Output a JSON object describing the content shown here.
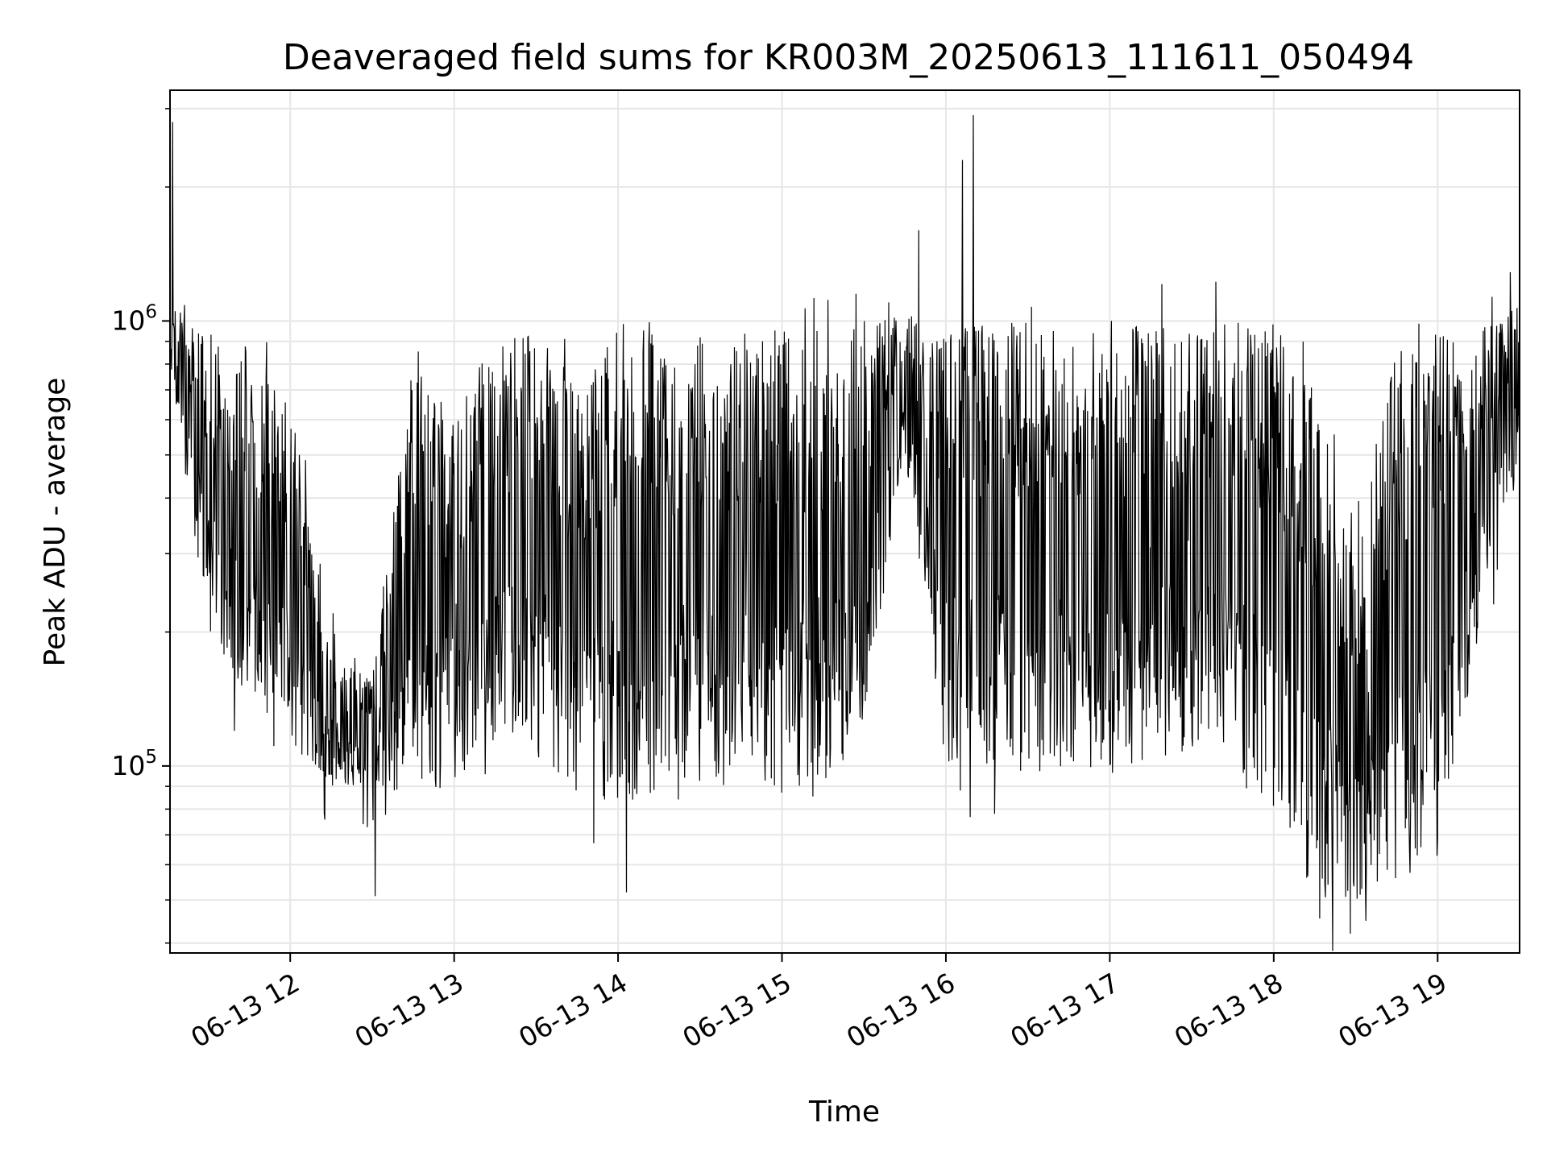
{
  "chart_data": {
    "type": "line",
    "title": "Deaveraged field sums for KR003M_20250613_111611_050494",
    "xlabel": "Time",
    "ylabel": "Peak ADU - average",
    "yscale": "log",
    "ylim": [
      38000,
      3300000
    ],
    "xlim": [
      "2025-06-13 11:16",
      "2025-06-13 19:30"
    ],
    "grid": true,
    "line_color": "#000000",
    "x_tick_labels": [
      "06-13 12",
      "06-13 13",
      "06-13 14",
      "06-13 15",
      "06-13 16",
      "06-13 17",
      "06-13 18",
      "06-13 19"
    ],
    "x_tick_times": [
      "2025-06-13 12:00",
      "2025-06-13 13:00",
      "2025-06-13 14:00",
      "2025-06-13 15:00",
      "2025-06-13 16:00",
      "2025-06-13 17:00",
      "2025-06-13 18:00",
      "2025-06-13 19:00"
    ],
    "y_ticks": [
      {
        "value": 100000,
        "base": "10",
        "exp": "5"
      },
      {
        "value": 1000000,
        "base": "10",
        "exp": "6"
      }
    ],
    "series": [
      {
        "band_envelope": {
          "x": [
            "2025-06-13 11:16",
            "2025-06-13 11:30",
            "2025-06-13 11:45",
            "2025-06-13 12:00",
            "2025-06-13 12:15",
            "2025-06-13 12:30",
            "2025-06-13 12:45",
            "2025-06-13 13:00",
            "2025-06-13 13:15",
            "2025-06-13 13:30",
            "2025-06-13 13:45",
            "2025-06-13 14:00",
            "2025-06-13 14:15",
            "2025-06-13 14:30",
            "2025-06-13 14:45",
            "2025-06-13 15:00",
            "2025-06-13 15:15",
            "2025-06-13 15:30",
            "2025-06-13 15:45",
            "2025-06-13 16:00",
            "2025-06-13 16:15",
            "2025-06-13 16:30",
            "2025-06-13 16:45",
            "2025-06-13 17:00",
            "2025-06-13 17:15",
            "2025-06-13 17:30",
            "2025-06-13 17:45",
            "2025-06-13 18:00",
            "2025-06-13 18:15",
            "2025-06-13 18:30",
            "2025-06-13 18:45",
            "2025-06-13 19:00",
            "2025-06-13 19:15",
            "2025-06-13 19:30"
          ],
          "upper": [
            1100000,
            950000,
            850000,
            700000,
            180000,
            160000,
            900000,
            600000,
            950000,
            950000,
            700000,
            1000000,
            950000,
            950000,
            950000,
            950000,
            950000,
            1000000,
            1050000,
            950000,
            1000000,
            1000000,
            950000,
            1000000,
            1000000,
            1000000,
            1000000,
            1000000,
            700000,
            300000,
            950000,
            950000,
            950000,
            1100000
          ],
          "lower": [
            800000,
            200000,
            140000,
            110000,
            90000,
            90000,
            85000,
            90000,
            110000,
            110000,
            85000,
            80000,
            85000,
            90000,
            90000,
            85000,
            85000,
            120000,
            500000,
            100000,
            100000,
            95000,
            100000,
            95000,
            100000,
            110000,
            100000,
            80000,
            50000,
            50000,
            55000,
            60000,
            200000,
            500000
          ]
        },
        "spikes": [
          {
            "x": "2025-06-13 11:17",
            "y": 2800000
          },
          {
            "x": "2025-06-13 15:50",
            "y": 1600000
          },
          {
            "x": "2025-06-13 16:06",
            "y": 2300000
          },
          {
            "x": "2025-06-13 16:10",
            "y": 2900000
          },
          {
            "x": "2025-06-13 18:28",
            "y": 42000
          },
          {
            "x": "2025-06-13 14:03",
            "y": 52000
          },
          {
            "x": "2025-06-13 12:31",
            "y": 51000
          }
        ]
      }
    ]
  }
}
